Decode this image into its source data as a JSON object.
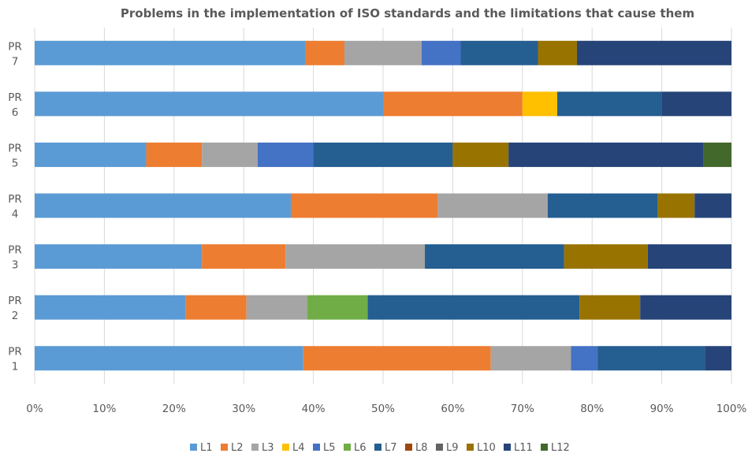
{
  "chart_data": {
    "type": "bar",
    "orientation": "horizontal",
    "stacked": "100%",
    "title": "Problems in the implementation of ISO standards and the limitations that cause them",
    "categories": [
      "PR 1",
      "PR 2",
      "PR 3",
      "PR 4",
      "PR 5",
      "PR 6",
      "PR 7"
    ],
    "category_lines": [
      [
        "PR",
        "1"
      ],
      [
        "PR",
        "2"
      ],
      [
        "PR",
        "3"
      ],
      [
        "PR",
        "4"
      ],
      [
        "PR",
        "5"
      ],
      [
        "PR",
        "6"
      ],
      [
        "PR",
        "7"
      ]
    ],
    "xlim": [
      0,
      100
    ],
    "x_ticks": [
      "0%",
      "10%",
      "20%",
      "30%",
      "40%",
      "50%",
      "60%",
      "70%",
      "80%",
      "90%",
      "100%"
    ],
    "grid": true,
    "legend_position": "bottom",
    "series": [
      {
        "name": "L1",
        "color": "#5B9BD5",
        "values": [
          38.5,
          21.7,
          24,
          36.8,
          16,
          50,
          38.9
        ]
      },
      {
        "name": "L2",
        "color": "#ED7D31",
        "values": [
          26.9,
          8.7,
          12,
          21.1,
          8,
          20,
          5.6
        ]
      },
      {
        "name": "L3",
        "color": "#A5A5A5",
        "values": [
          11.5,
          8.7,
          20,
          15.8,
          8,
          0,
          11.1
        ]
      },
      {
        "name": "L4",
        "color": "#FFC000",
        "values": [
          0,
          0,
          0,
          0,
          0,
          5,
          0
        ]
      },
      {
        "name": "L5",
        "color": "#4472C4",
        "values": [
          3.8,
          0,
          0,
          0,
          8,
          0,
          5.6
        ]
      },
      {
        "name": "L6",
        "color": "#70AD47",
        "values": [
          0,
          8.7,
          0,
          0,
          0,
          0,
          0
        ]
      },
      {
        "name": "L7",
        "color": "#255E91",
        "values": [
          15.4,
          30.4,
          20,
          15.8,
          20,
          15,
          11.1
        ]
      },
      {
        "name": "L8",
        "color": "#9E480E",
        "values": [
          0,
          0,
          0,
          0,
          0,
          0,
          0
        ]
      },
      {
        "name": "L9",
        "color": "#636363",
        "values": [
          0,
          0,
          0,
          0,
          0,
          0,
          0
        ]
      },
      {
        "name": "L10",
        "color": "#997300",
        "values": [
          0,
          8.7,
          12,
          5.3,
          8,
          0,
          5.6
        ]
      },
      {
        "name": "L11",
        "color": "#264478",
        "values": [
          3.8,
          13.1,
          12,
          5.3,
          28,
          10,
          22.2
        ]
      },
      {
        "name": "L12",
        "color": "#43682B",
        "values": [
          0,
          0,
          0,
          0,
          4,
          0,
          0
        ]
      }
    ]
  }
}
